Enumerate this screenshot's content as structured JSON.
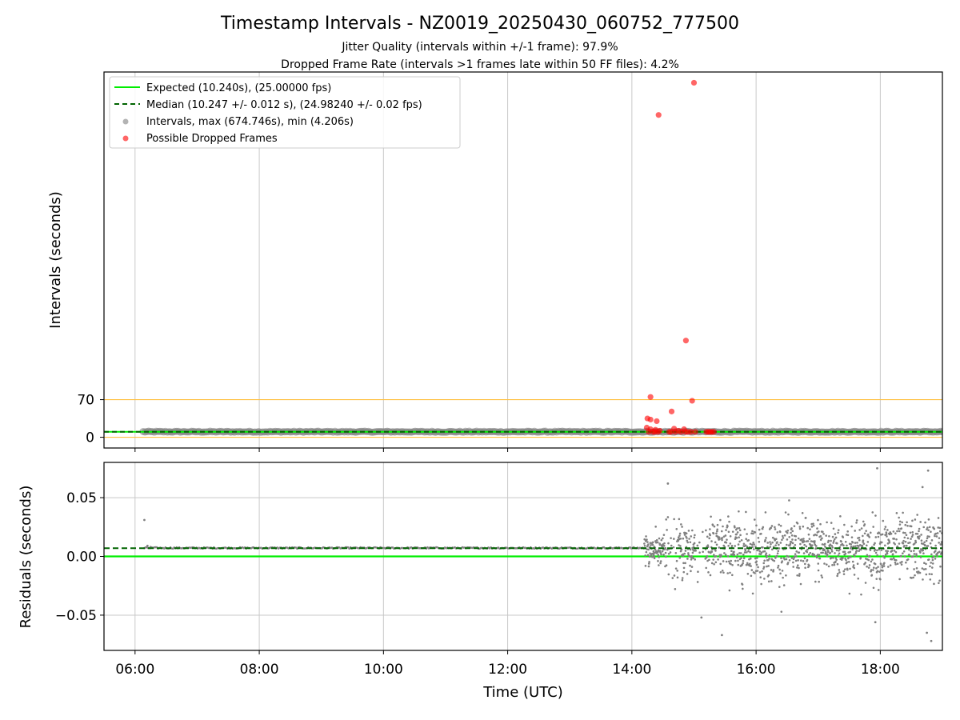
{
  "title": "Timestamp Intervals - NZ0019_20250430_060752_777500",
  "subtitle1": "Jitter Quality (intervals within +/-1 frame): 97.9%",
  "subtitle2": "Dropped Frame Rate (intervals >1 frames late within 50 FF files): 4.2%",
  "colors": {
    "expected": "#00ee00",
    "median": "#006400",
    "intervals": "#808080",
    "dropped": "#ff0000",
    "threshold": "#ffc040",
    "grid": "#c8c8c8"
  },
  "chart_data": [
    {
      "type": "scatter",
      "ylabel": "Intervals (seconds)",
      "xlim_hours": [
        5.5,
        19.0
      ],
      "ylim": [
        -20,
        680
      ],
      "y_ticks": [
        0,
        70
      ],
      "y_tick_labels": [
        "0",
        "70"
      ],
      "threshold_lines": [
        70,
        0
      ],
      "expected_value": 10.24,
      "median_value": 10.247,
      "interval_range_hours": [
        6.13,
        19.0
      ],
      "legend": {
        "placement": "top-left",
        "entries": [
          {
            "key": "expected",
            "label": "Expected (10.240s), (25.00000 fps)",
            "style": "solid"
          },
          {
            "key": "median",
            "label": "Median (10.247 +/- 0.012 s), (24.98240 +/- 0.02 fps)",
            "style": "dashed"
          },
          {
            "key": "intervals",
            "label": "Intervals, max (674.746s), min (4.206s)",
            "style": "marker"
          },
          {
            "key": "dropped",
            "label": "Possible Dropped Frames",
            "style": "marker"
          }
        ]
      },
      "dropped_frames": [
        {
          "x": 14.43,
          "y": 600
        },
        {
          "x": 15.0,
          "y": 660
        },
        {
          "x": 14.87,
          "y": 180
        },
        {
          "x": 14.97,
          "y": 68
        },
        {
          "x": 14.3,
          "y": 75
        },
        {
          "x": 14.25,
          "y": 35
        },
        {
          "x": 14.3,
          "y": 33
        },
        {
          "x": 14.4,
          "y": 30
        },
        {
          "x": 14.64,
          "y": 48
        },
        {
          "x": 14.24,
          "y": 18
        },
        {
          "x": 14.3,
          "y": 15
        },
        {
          "x": 14.38,
          "y": 14
        },
        {
          "x": 14.45,
          "y": 12
        },
        {
          "x": 14.68,
          "y": 16
        },
        {
          "x": 14.75,
          "y": 12
        },
        {
          "x": 14.84,
          "y": 15
        },
        {
          "x": 14.86,
          "y": 10
        },
        {
          "x": 14.6,
          "y": 10
        },
        {
          "x": 14.63,
          "y": 10
        },
        {
          "x": 14.7,
          "y": 10
        },
        {
          "x": 14.79,
          "y": 10
        },
        {
          "x": 14.9,
          "y": 10
        },
        {
          "x": 14.95,
          "y": 10
        },
        {
          "x": 15.02,
          "y": 10
        },
        {
          "x": 14.27,
          "y": 10
        },
        {
          "x": 14.34,
          "y": 10
        },
        {
          "x": 14.42,
          "y": 10
        },
        {
          "x": 15.2,
          "y": 10
        },
        {
          "x": 15.23,
          "y": 10
        },
        {
          "x": 15.26,
          "y": 10
        },
        {
          "x": 15.29,
          "y": 10
        },
        {
          "x": 15.32,
          "y": 10
        },
        {
          "x": 14.37,
          "y": 10
        }
      ]
    },
    {
      "type": "scatter",
      "xlabel": "Time (UTC)",
      "ylabel": "Residuals (seconds)",
      "xlim_hours": [
        5.5,
        19.0
      ],
      "ylim": [
        -0.08,
        0.08
      ],
      "x_ticks_hours": [
        6,
        8,
        10,
        12,
        14,
        16,
        18
      ],
      "x_tick_labels": [
        "06:00",
        "08:00",
        "10:00",
        "12:00",
        "14:00",
        "16:00",
        "18:00"
      ],
      "y_ticks": [
        0.05,
        0.0,
        -0.05
      ],
      "y_tick_labels": [
        "0.05",
        "0.00",
        "−0.05"
      ],
      "expected_value": 0.0,
      "median_value": 0.007,
      "steady_segment_hours": [
        6.15,
        14.2
      ],
      "steady_value": 0.0072,
      "noisy_segment_hours": [
        14.2,
        19.0
      ],
      "noise_center": 0.006,
      "noise_spread": 0.022,
      "notable_points": [
        {
          "x": 6.15,
          "y": 0.031
        },
        {
          "x": 6.2,
          "y": 0.009
        },
        {
          "x": 6.25,
          "y": 0.008
        },
        {
          "x": 14.58,
          "y": 0.062
        },
        {
          "x": 15.12,
          "y": -0.052
        },
        {
          "x": 15.45,
          "y": -0.067
        },
        {
          "x": 17.95,
          "y": 0.075
        },
        {
          "x": 18.77,
          "y": 0.073
        },
        {
          "x": 18.68,
          "y": 0.059
        },
        {
          "x": 18.82,
          "y": -0.072
        },
        {
          "x": 18.75,
          "y": -0.065
        },
        {
          "x": 17.92,
          "y": -0.056
        }
      ]
    }
  ]
}
